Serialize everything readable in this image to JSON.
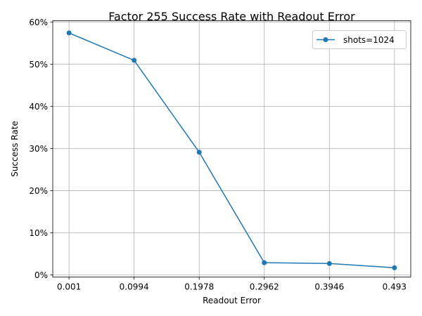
{
  "chart_data": {
    "type": "line",
    "title": "Factor 255 Success Rate with Readout Error",
    "xlabel": "Readout Error",
    "ylabel": "Success Rate",
    "x": [
      0.001,
      0.0994,
      0.1978,
      0.2962,
      0.3946,
      0.493
    ],
    "x_tick_labels": [
      "0.001",
      "0.0994",
      "0.1978",
      "0.2962",
      "0.3946",
      "0.493"
    ],
    "y_ticks": [
      0,
      10,
      20,
      30,
      40,
      50,
      60
    ],
    "y_tick_labels": [
      "0%",
      "10%",
      "20%",
      "30%",
      "40%",
      "50%",
      "60%"
    ],
    "ylim": [
      -0.5,
      60.3
    ],
    "y_unit": "%",
    "grid": true,
    "legend_position": "top-right",
    "series": [
      {
        "name": "shots=1024",
        "color": "#1f77b4",
        "marker": "circle",
        "values": [
          57.4,
          50.9,
          29.1,
          2.9,
          2.7,
          1.7
        ]
      }
    ]
  }
}
